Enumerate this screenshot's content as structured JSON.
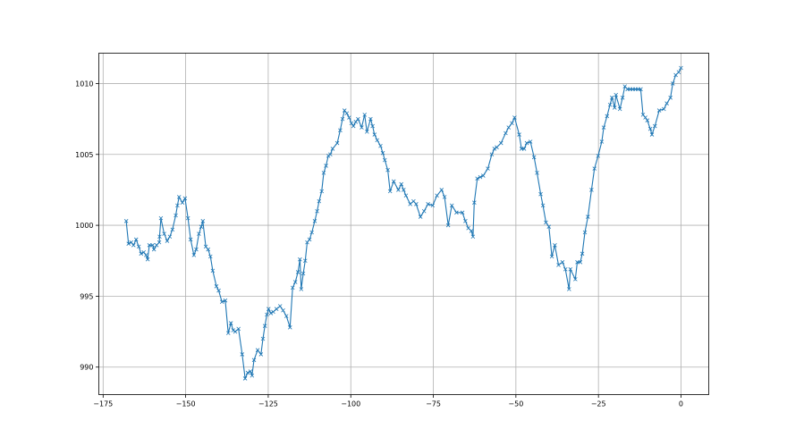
{
  "chart_data": {
    "type": "line",
    "title": "",
    "xlabel": "",
    "ylabel": "",
    "xlim": [
      -176.3,
      8.4
    ],
    "ylim": [
      988.06,
      1012.14
    ],
    "xticks": [
      -175,
      -150,
      -125,
      -100,
      -75,
      -50,
      -25,
      0
    ],
    "yticks": [
      990,
      995,
      1000,
      1005,
      1010
    ],
    "grid": true,
    "marker": "x",
    "color": "#1f77b4",
    "series": [
      {
        "points": [
          [
            -168,
            1000.3
          ],
          [
            -167.3,
            998.7
          ],
          [
            -166.5,
            998.8
          ],
          [
            -165.8,
            998.6
          ],
          [
            -165,
            999.0
          ],
          [
            -164.2,
            998.5
          ],
          [
            -163.5,
            998.0
          ],
          [
            -162.7,
            998.1
          ],
          [
            -162,
            997.9
          ],
          [
            -161.5,
            997.6
          ],
          [
            -161,
            998.6
          ],
          [
            -160,
            998.6
          ],
          [
            -159.6,
            998.3
          ],
          [
            -158.8,
            998.6
          ],
          [
            -158,
            998.8
          ],
          [
            -157.9,
            999.2
          ],
          [
            -157.5,
            1000.5
          ],
          [
            -156.5,
            999.4
          ],
          [
            -155.6,
            998.9
          ],
          [
            -154.8,
            999.2
          ],
          [
            -154,
            999.7
          ],
          [
            -153,
            1000.7
          ],
          [
            -152.5,
            1001.4
          ],
          [
            -152,
            1002.0
          ],
          [
            -151,
            1001.6
          ],
          [
            -150.2,
            1001.9
          ],
          [
            -149.3,
            1000.5
          ],
          [
            -148.5,
            999.0
          ],
          [
            -147.5,
            997.9
          ],
          [
            -146.8,
            998.3
          ],
          [
            -146,
            999.4
          ],
          [
            -145.3,
            999.9
          ],
          [
            -144.8,
            1000.3
          ],
          [
            -143.9,
            998.5
          ],
          [
            -143.2,
            998.3
          ],
          [
            -142.5,
            997.8
          ],
          [
            -141.8,
            996.8
          ],
          [
            -140.7,
            995.7
          ],
          [
            -140,
            995.4
          ],
          [
            -139,
            994.6
          ],
          [
            -138,
            994.7
          ],
          [
            -137.1,
            992.4
          ],
          [
            -136.3,
            993.1
          ],
          [
            -135.6,
            992.6
          ],
          [
            -135,
            992.5
          ],
          [
            -134,
            992.7
          ],
          [
            -132.9,
            990.9
          ],
          [
            -132,
            989.2
          ],
          [
            -131.2,
            989.6
          ],
          [
            -130.4,
            989.7
          ],
          [
            -129.9,
            989.4
          ],
          [
            -129.3,
            990.5
          ],
          [
            -128.2,
            991.2
          ],
          [
            -127.2,
            990.9
          ],
          [
            -126.6,
            992.0
          ],
          [
            -126,
            992.9
          ],
          [
            -125.4,
            993.7
          ],
          [
            -124.9,
            994.1
          ],
          [
            -124.2,
            993.8
          ],
          [
            -123.5,
            993.9
          ],
          [
            -122.5,
            994.1
          ],
          [
            -121.4,
            994.3
          ],
          [
            -120.5,
            994.0
          ],
          [
            -119.5,
            993.6
          ],
          [
            -118.4,
            992.8
          ],
          [
            -117.6,
            995.6
          ],
          [
            -116.8,
            996.0
          ],
          [
            -116,
            996.7
          ],
          [
            -115.4,
            997.6
          ],
          [
            -115,
            995.5
          ],
          [
            -114.4,
            996.6
          ],
          [
            -113.8,
            997.5
          ],
          [
            -113.2,
            998.8
          ],
          [
            -112.5,
            999.0
          ],
          [
            -111.8,
            999.5
          ],
          [
            -110.9,
            1000.3
          ],
          [
            -110.2,
            1001.0
          ],
          [
            -109.6,
            1001.7
          ],
          [
            -108.8,
            1002.4
          ],
          [
            -108.2,
            1003.7
          ],
          [
            -107.5,
            1004.2
          ],
          [
            -106.8,
            1004.9
          ],
          [
            -106.2,
            1005.0
          ],
          [
            -105.5,
            1005.4
          ],
          [
            -104.1,
            1005.8
          ],
          [
            -103.2,
            1006.7
          ],
          [
            -102.5,
            1007.5
          ],
          [
            -101.9,
            1008.1
          ],
          [
            -101.2,
            1007.9
          ],
          [
            -100.5,
            1007.6
          ],
          [
            -99.8,
            1007.2
          ],
          [
            -99.2,
            1007.0
          ],
          [
            -98.5,
            1007.3
          ],
          [
            -97.8,
            1007.5
          ],
          [
            -96.7,
            1006.9
          ],
          [
            -95.8,
            1007.8
          ],
          [
            -95.1,
            1006.6
          ],
          [
            -94,
            1007.5
          ],
          [
            -93.4,
            1007.0
          ],
          [
            -92.8,
            1006.4
          ],
          [
            -92,
            1006.0
          ],
          [
            -91,
            1005.6
          ],
          [
            -90.3,
            1005.1
          ],
          [
            -89.7,
            1004.6
          ],
          [
            -88.8,
            1003.9
          ],
          [
            -88.1,
            1002.4
          ],
          [
            -87,
            1003.1
          ],
          [
            -85.6,
            1002.5
          ],
          [
            -84.7,
            1002.9
          ],
          [
            -84,
            1002.5
          ],
          [
            -83.3,
            1002.1
          ],
          [
            -82,
            1001.5
          ],
          [
            -81,
            1001.7
          ],
          [
            -80.2,
            1001.5
          ],
          [
            -78.9,
            1000.6
          ],
          [
            -77.8,
            1001.0
          ],
          [
            -76.6,
            1001.5
          ],
          [
            -75.2,
            1001.4
          ],
          [
            -73.9,
            1002.1
          ],
          [
            -72.5,
            1002.5
          ],
          [
            -71.6,
            1002.0
          ],
          [
            -70.5,
            1000.0
          ],
          [
            -69.4,
            1001.4
          ],
          [
            -68,
            1000.9
          ],
          [
            -66.2,
            1000.9
          ],
          [
            -65.3,
            1000.3
          ],
          [
            -64.4,
            999.8
          ],
          [
            -63.5,
            999.6
          ],
          [
            -63,
            999.2
          ],
          [
            -62.6,
            1001.6
          ],
          [
            -61.7,
            1003.3
          ],
          [
            -60.8,
            1003.4
          ],
          [
            -59.9,
            1003.5
          ],
          [
            -58.5,
            1004.0
          ],
          [
            -57.3,
            1005.0
          ],
          [
            -56.5,
            1005.4
          ],
          [
            -55.8,
            1005.5
          ],
          [
            -54.5,
            1005.8
          ],
          [
            -53.1,
            1006.5
          ],
          [
            -52.2,
            1006.9
          ],
          [
            -51.2,
            1007.2
          ],
          [
            -50.4,
            1007.6
          ],
          [
            -49,
            1006.4
          ],
          [
            -48.3,
            1005.4
          ],
          [
            -47.5,
            1005.4
          ],
          [
            -46.7,
            1005.8
          ],
          [
            -45.6,
            1005.9
          ],
          [
            -44.5,
            1004.8
          ],
          [
            -43.6,
            1003.7
          ],
          [
            -42.5,
            1002.2
          ],
          [
            -41.8,
            1001.4
          ],
          [
            -40.9,
            1000.2
          ],
          [
            -40,
            999.9
          ],
          [
            -39.1,
            997.8
          ],
          [
            -38.2,
            998.6
          ],
          [
            -37.1,
            997.2
          ],
          [
            -35.9,
            997.4
          ],
          [
            -35,
            996.9
          ],
          [
            -33.9,
            995.5
          ],
          [
            -33.5,
            996.9
          ],
          [
            -32,
            996.2
          ],
          [
            -31.4,
            997.4
          ],
          [
            -30.5,
            997.4
          ],
          [
            -29.9,
            998.0
          ],
          [
            -29.1,
            999.5
          ],
          [
            -28.2,
            1000.6
          ],
          [
            -27.1,
            1002.5
          ],
          [
            -26.2,
            1004.0
          ],
          [
            -25.1,
            1004.9
          ],
          [
            -24,
            1005.9
          ],
          [
            -23.4,
            1006.9
          ],
          [
            -22.4,
            1007.7
          ],
          [
            -21.5,
            1008.5
          ],
          [
            -20.9,
            1009.0
          ],
          [
            -20.1,
            1008.3
          ],
          [
            -19.7,
            1009.2
          ],
          [
            -18.5,
            1008.2
          ],
          [
            -17.7,
            1009.0
          ],
          [
            -17,
            1009.8
          ],
          [
            -16.2,
            1009.6
          ],
          [
            -15.4,
            1009.6
          ],
          [
            -14.6,
            1009.6
          ],
          [
            -13.8,
            1009.6
          ],
          [
            -13,
            1009.6
          ],
          [
            -12.2,
            1009.6
          ],
          [
            -11.5,
            1007.8
          ],
          [
            -10.8,
            1007.6
          ],
          [
            -10.2,
            1007.4
          ],
          [
            -9.3,
            1006.8
          ],
          [
            -8.8,
            1006.4
          ],
          [
            -7.9,
            1007.0
          ],
          [
            -6.6,
            1008.1
          ],
          [
            -5.2,
            1008.2
          ],
          [
            -4.3,
            1008.6
          ],
          [
            -3.2,
            1009.0
          ],
          [
            -2.5,
            1010.0
          ],
          [
            -1.6,
            1010.6
          ],
          [
            -0.7,
            1010.8
          ],
          [
            0,
            1011.1
          ]
        ]
      }
    ]
  }
}
